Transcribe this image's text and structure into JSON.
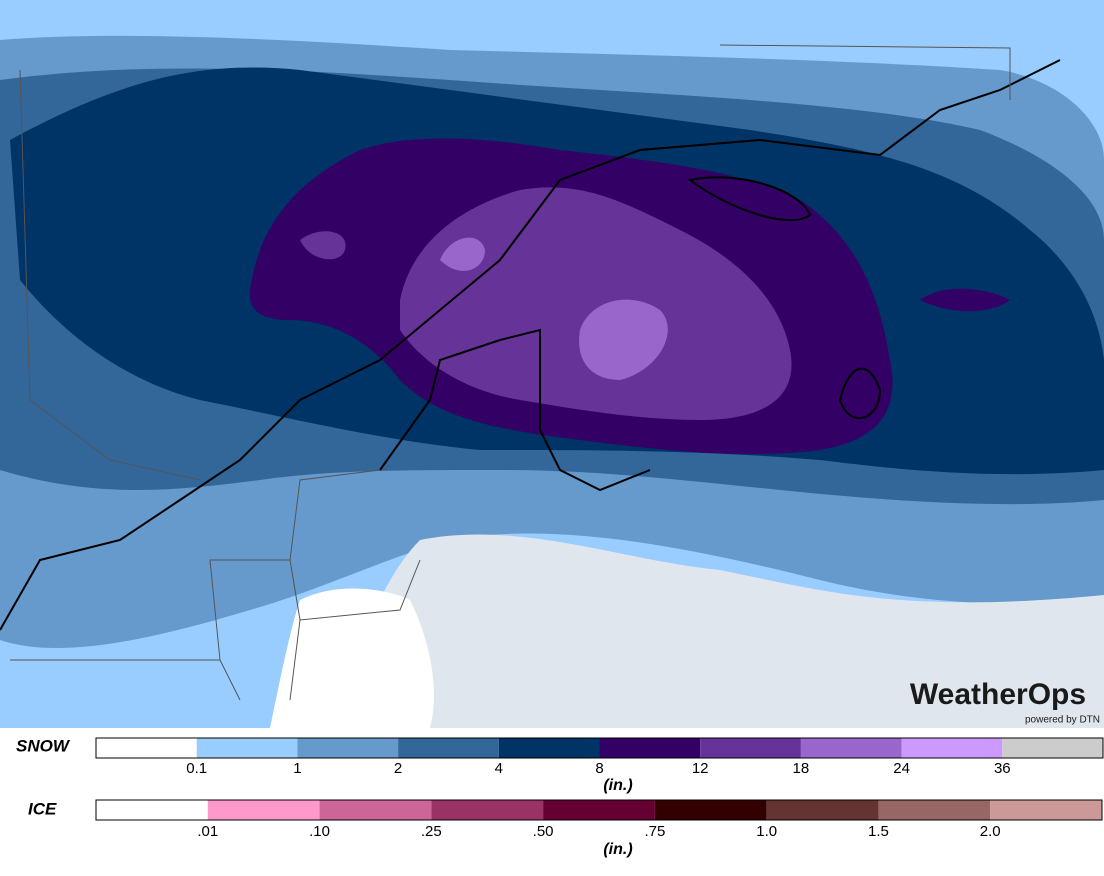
{
  "legend": {
    "snow": {
      "label": "SNOW",
      "unit": "(in.)",
      "ticks": [
        "0.1",
        "1",
        "2",
        "4",
        "8",
        "12",
        "18",
        "24",
        "36"
      ],
      "colors": [
        "#ffffff",
        "#99ccff",
        "#6699cc",
        "#336699",
        "#003366",
        "#330066",
        "#663399",
        "#9966cc",
        "#cc99ff",
        "#cccccc"
      ]
    },
    "ice": {
      "label": "ICE",
      "unit": "(in.)",
      "ticks": [
        ".01",
        ".10",
        ".25",
        ".50",
        ".75",
        "1.0",
        "1.5",
        "2.0"
      ],
      "colors": [
        "#ffffff",
        "#ff99cc",
        "#cc6699",
        "#993366",
        "#660033",
        "#330000",
        "#663333",
        "#996666",
        "#cc9999"
      ]
    }
  },
  "logo": {
    "brand": "WeatherOps",
    "powered": "powered by DTN"
  }
}
